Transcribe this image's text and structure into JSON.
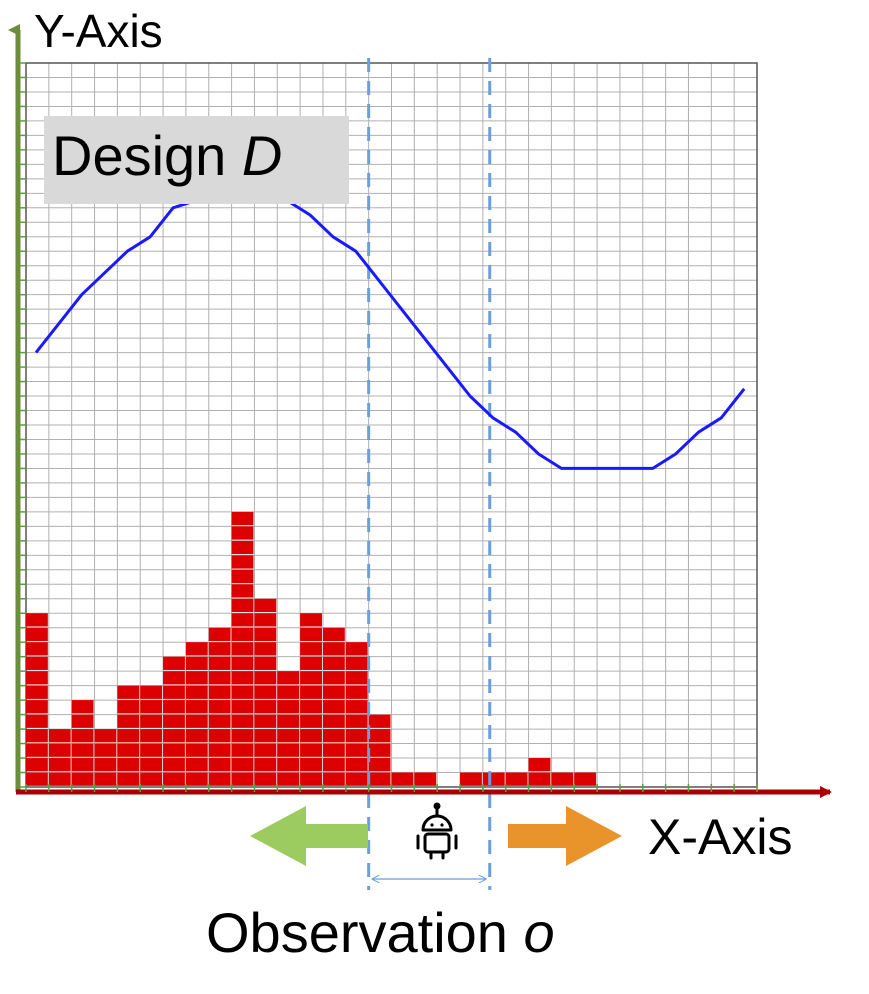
{
  "labels": {
    "y_axis": "Y-Axis",
    "x_axis": "X-Axis",
    "design_text": "Design",
    "design_var": "D",
    "observation_text": "Observation",
    "observation_var": "o"
  },
  "icons": {
    "agent": "robot-icon",
    "left_arrow": "left-arrow-icon",
    "right_arrow": "right-arrow-icon"
  },
  "colors": {
    "curve": "#1a1aff",
    "bars": "#dd0000",
    "x_axis": "#aa0000",
    "y_axis": "#6b8e3a",
    "window": "#6a9fdc",
    "left_arrow": "#9ccc5f",
    "right_arrow": "#e8942a",
    "grid": "#b0b0b0"
  },
  "histogram": [
    12,
    4,
    6,
    4,
    7,
    7,
    9,
    10,
    11,
    19,
    13,
    8,
    12,
    11,
    10,
    5,
    1,
    1,
    0,
    1,
    1,
    1,
    2,
    1,
    1,
    0,
    0,
    0,
    0,
    0,
    0,
    0
  ],
  "curve": [
    [
      0,
      30
    ],
    [
      2,
      34
    ],
    [
      4,
      37
    ],
    [
      5,
      38
    ],
    [
      6,
      40
    ],
    [
      7,
      40.5
    ],
    [
      8,
      40.5
    ],
    [
      9,
      40.5
    ],
    [
      10,
      40.5
    ],
    [
      11,
      40.5
    ],
    [
      12,
      39.5
    ],
    [
      13,
      38
    ],
    [
      14,
      37
    ],
    [
      15,
      35
    ],
    [
      16,
      33
    ],
    [
      17,
      31
    ],
    [
      18,
      29
    ],
    [
      19,
      27
    ],
    [
      20,
      25.5
    ],
    [
      21,
      24.5
    ],
    [
      22,
      23
    ],
    [
      23,
      22
    ],
    [
      24,
      22
    ],
    [
      25,
      22
    ],
    [
      26,
      22
    ],
    [
      27,
      22
    ],
    [
      28,
      23
    ],
    [
      29,
      24.5
    ],
    [
      30,
      25.5
    ],
    [
      31,
      27.5
    ]
  ],
  "observation_window": [
    15,
    20.3
  ]
}
